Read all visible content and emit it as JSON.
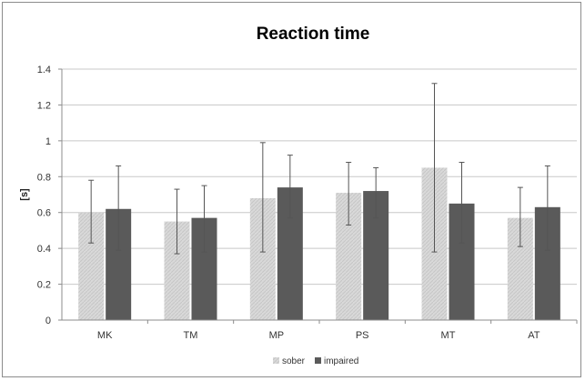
{
  "chart_data": {
    "type": "bar",
    "title": "Reaction time",
    "xlabel": "",
    "ylabel": "[s]",
    "ylim": [
      0,
      1.4
    ],
    "yticks": [
      "0",
      "0.2",
      "0.4",
      "0.6",
      "0.8",
      "1",
      "1.2",
      "1.4"
    ],
    "ytick_values": [
      0,
      0.2,
      0.4,
      0.6,
      0.8,
      1.0,
      1.2,
      1.4
    ],
    "grid": true,
    "legend_position": "bottom",
    "categories": [
      "MK",
      "TM",
      "MP",
      "PS",
      "MT",
      "AT"
    ],
    "series": [
      {
        "name": "sober",
        "color": "#d4d4d4",
        "values": [
          0.6,
          0.55,
          0.68,
          0.71,
          0.85,
          0.57
        ],
        "error_low": [
          0.43,
          0.37,
          0.38,
          0.53,
          0.38,
          0.41
        ],
        "error_high": [
          0.78,
          0.73,
          0.99,
          0.88,
          1.32,
          0.74
        ]
      },
      {
        "name": "impaired",
        "color": "#5a5a5a",
        "values": [
          0.62,
          0.57,
          0.74,
          0.72,
          0.65,
          0.63
        ],
        "error_low": [
          0.39,
          0.38,
          0.57,
          0.57,
          0.43,
          0.39
        ],
        "error_high": [
          0.86,
          0.75,
          0.92,
          0.85,
          0.88,
          0.86
        ]
      }
    ]
  }
}
